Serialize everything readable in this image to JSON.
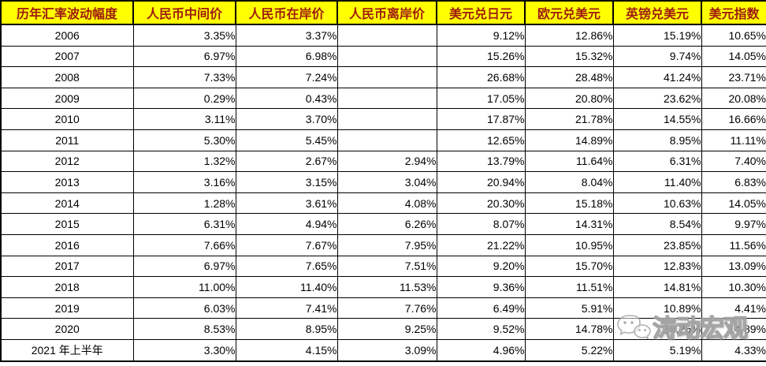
{
  "chart_data": {
    "type": "table",
    "title": "历年汇率波动幅度",
    "columns": [
      "历年汇率波动幅度",
      "人民币中间价",
      "人民币在岸价",
      "人民币离岸价",
      "美元兑日元",
      "欧元兑美元",
      "英镑兑美元",
      "美元指数"
    ],
    "rows": [
      {
        "label": "2006",
        "values": [
          "3.35%",
          "3.37%",
          "",
          "9.12%",
          "12.86%",
          "15.19%",
          "10.65%"
        ]
      },
      {
        "label": "2007",
        "values": [
          "6.97%",
          "6.98%",
          "",
          "15.26%",
          "15.32%",
          "9.74%",
          "14.05%"
        ]
      },
      {
        "label": "2008",
        "values": [
          "7.33%",
          "7.24%",
          "",
          "26.68%",
          "28.48%",
          "41.24%",
          "23.71%"
        ]
      },
      {
        "label": "2009",
        "values": [
          "0.29%",
          "0.43%",
          "",
          "17.05%",
          "20.80%",
          "23.62%",
          "20.08%"
        ]
      },
      {
        "label": "2010",
        "values": [
          "3.11%",
          "3.70%",
          "",
          "17.87%",
          "21.78%",
          "14.55%",
          "16.66%"
        ]
      },
      {
        "label": "2011",
        "values": [
          "5.30%",
          "5.45%",
          "",
          "12.65%",
          "14.89%",
          "8.95%",
          "11.11%"
        ]
      },
      {
        "label": "2012",
        "values": [
          "1.32%",
          "2.67%",
          "2.94%",
          "13.79%",
          "11.64%",
          "6.31%",
          "7.40%"
        ]
      },
      {
        "label": "2013",
        "values": [
          "3.16%",
          "3.15%",
          "3.04%",
          "20.94%",
          "8.04%",
          "11.40%",
          "6.83%"
        ]
      },
      {
        "label": "2014",
        "values": [
          "1.28%",
          "3.61%",
          "4.08%",
          "20.30%",
          "15.18%",
          "10.63%",
          "14.05%"
        ]
      },
      {
        "label": "2015",
        "values": [
          "6.31%",
          "4.94%",
          "6.26%",
          "8.07%",
          "14.31%",
          "8.54%",
          "9.97%"
        ]
      },
      {
        "label": "2016",
        "values": [
          "7.66%",
          "7.67%",
          "7.95%",
          "21.22%",
          "10.95%",
          "23.85%",
          "11.56%"
        ]
      },
      {
        "label": "2017",
        "values": [
          "6.97%",
          "7.65%",
          "7.51%",
          "9.20%",
          "15.70%",
          "12.83%",
          "13.09%"
        ]
      },
      {
        "label": "2018",
        "values": [
          "11.00%",
          "11.40%",
          "11.53%",
          "9.36%",
          "11.51%",
          "14.81%",
          "10.30%"
        ]
      },
      {
        "label": "2019",
        "values": [
          "6.03%",
          "7.41%",
          "7.76%",
          "6.49%",
          "5.91%",
          "10.89%",
          "4.41%"
        ]
      },
      {
        "label": "2020",
        "values": [
          "8.53%",
          "8.95%",
          "9.25%",
          "9.52%",
          "14.78%",
          "18.25%",
          "14.89%"
        ]
      },
      {
        "label": "2021 年上半年",
        "values": [
          "3.30%",
          "4.15%",
          "3.09%",
          "4.96%",
          "5.22%",
          "5.19%",
          "4.33%"
        ]
      }
    ],
    "layout": {
      "header_position": "top",
      "grid": "on"
    }
  },
  "watermark": {
    "text": "涛动宏观",
    "icon": "wechat-bubbles-icon"
  },
  "colors": {
    "header_bg": "#FFFF00",
    "header_text": "#9E1B0E",
    "grid": "#000000",
    "cell_text": "#000000",
    "watermark_gray": "#969696"
  }
}
